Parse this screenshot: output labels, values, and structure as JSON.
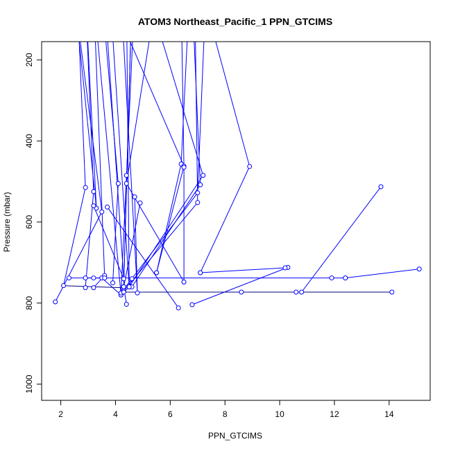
{
  "chart_data": {
    "type": "line",
    "title": "ATOM3 Northeast_Pacific_1 PPN_GTCIMS",
    "xlabel": "PPN_GTCIMS",
    "ylabel": "Pressure (mbar)",
    "xlim": [
      1.3,
      15.5
    ],
    "ylim": [
      1040,
      155
    ],
    "y_reversed": true,
    "xticks": [
      2,
      4,
      6,
      8,
      10,
      12,
      14
    ],
    "yticks": [
      200,
      400,
      600,
      800,
      1000
    ],
    "grid": false,
    "legend": "none",
    "colors": {
      "series": "#0000ff",
      "dark_line": "#000080",
      "axis": "#000000"
    },
    "series": [
      {
        "x": [
          2.1,
          2.9,
          2.6
        ],
        "y": [
          757,
          515,
          40
        ]
      },
      {
        "x": [
          1.8,
          3.5,
          2.5,
          3.3,
          2.9
        ],
        "y": [
          797,
          575,
          40,
          566,
          40
        ]
      },
      {
        "x": [
          2.9,
          3.2,
          2.9
        ],
        "y": [
          762,
          525,
          40
        ]
      },
      {
        "x": [
          3.2,
          3.6,
          3.2
        ],
        "y": [
          762,
          732,
          40
        ]
      },
      {
        "x": [
          3.2,
          4.3,
          3.6
        ],
        "y": [
          560,
          740,
          40
        ]
      },
      {
        "x": [
          3.5,
          4.2,
          3.2
        ],
        "y": [
          738,
          780,
          40
        ]
      },
      {
        "x": [
          3.9,
          4.1,
          3.5
        ],
        "y": [
          750,
          505,
          40
        ]
      },
      {
        "x": [
          3.7,
          6.3
        ],
        "y": [
          563,
          812
        ]
      },
      {
        "x": [
          4.2,
          4.4,
          4.7
        ],
        "y": [
          776,
          485,
          40
        ]
      },
      {
        "x": [
          4.2,
          4.5,
          3.8
        ],
        "y": [
          780,
          760,
          40
        ]
      },
      {
        "x": [
          4.4,
          4.3,
          4.6
        ],
        "y": [
          803,
          760,
          40
        ]
      },
      {
        "x": [
          4.6,
          4.5,
          4.4
        ],
        "y": [
          740,
          760,
          40
        ]
      },
      {
        "x": [
          4.7,
          4.8,
          4.2
        ],
        "y": [
          538,
          775,
          40
        ]
      },
      {
        "x": [
          4.9,
          4.3,
          4.6
        ],
        "y": [
          553,
          760,
          40
        ]
      },
      {
        "x": [
          4.2,
          7.0,
          7.3
        ],
        "y": [
          775,
          528,
          40
        ]
      },
      {
        "x": [
          4.3,
          7.0,
          6.9
        ],
        "y": [
          770,
          552,
          40
        ]
      },
      {
        "x": [
          4.6,
          7.1,
          6.8
        ],
        "y": [
          760,
          508,
          40
        ]
      },
      {
        "x": [
          4.5,
          7.2,
          5.2
        ],
        "y": [
          760,
          485,
          40
        ]
      },
      {
        "x": [
          5.5,
          6.4,
          6.7
        ],
        "y": [
          725,
          457,
          40
        ]
      },
      {
        "x": [
          5.5,
          6.5,
          3.8
        ],
        "y": [
          725,
          462,
          40
        ]
      },
      {
        "x": [
          6.5,
          6.5,
          6.4
        ],
        "y": [
          748,
          465,
          40
        ]
      },
      {
        "x": [
          6.5,
          4.4,
          5.5
        ],
        "y": [
          748,
          505,
          40
        ]
      },
      {
        "x": [
          6.8,
          10.3
        ],
        "y": [
          804,
          712
        ]
      },
      {
        "x": [
          7.1,
          8.9,
          7.2
        ],
        "y": [
          725,
          463,
          40
        ]
      },
      {
        "x": [
          7.1,
          10.2
        ],
        "y": [
          725,
          713
        ]
      },
      {
        "x": [
          10.8,
          13.7
        ],
        "y": [
          773,
          513
        ]
      },
      {
        "x": [
          12.4,
          15.1
        ],
        "y": [
          738,
          716
        ]
      },
      {
        "x": [
          2.3,
          11.9,
          12.4
        ],
        "y": [
          738,
          738,
          738
        ]
      },
      {
        "x": [
          2.9,
          3.2,
          3.6
        ],
        "y": [
          738,
          738,
          738
        ]
      },
      {
        "x": [
          4.3,
          8.6,
          10.6,
          14.1
        ],
        "y": [
          773,
          773,
          773,
          773
        ]
      }
    ],
    "dark_series": [
      {
        "x": [
          2.1,
          4.2
        ],
        "y": [
          757,
          762
        ]
      },
      {
        "x": [
          4.2,
          14.1
        ],
        "y": [
          773,
          773
        ]
      }
    ]
  }
}
